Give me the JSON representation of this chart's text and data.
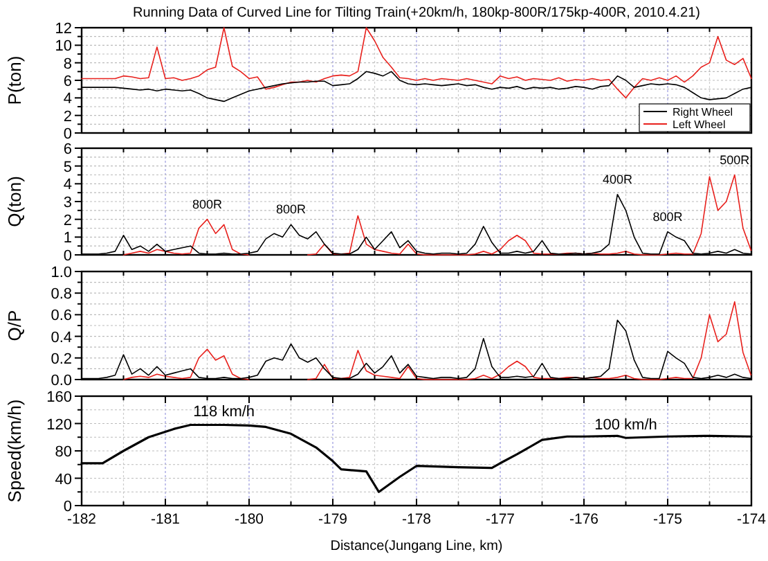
{
  "chart_data": [
    {
      "type": "line",
      "title": "Running Data of Curved Line for Tilting Train(+20km/h, 180kp-800R/175kp-400R, 2010.4.21)",
      "ylabel": "P(ton)",
      "xlim": [
        -182,
        -174
      ],
      "ylim": [
        0,
        12
      ],
      "xticks": [
        {
          "value": -182,
          "label": null
        },
        {
          "value": -181.5,
          "label": null
        },
        {
          "value": -181,
          "label": null
        },
        {
          "value": -180.5,
          "label": null
        },
        {
          "value": -180,
          "label": null
        },
        {
          "value": -179.5,
          "label": null
        },
        {
          "value": -179,
          "label": null
        },
        {
          "value": -178.5,
          "label": null
        },
        {
          "value": -178,
          "label": null
        },
        {
          "value": -177.5,
          "label": null
        },
        {
          "value": -177,
          "label": null
        },
        {
          "value": -176.5,
          "label": null
        },
        {
          "value": -176,
          "label": null
        },
        {
          "value": -175.5,
          "label": null
        },
        {
          "value": -175,
          "label": null
        },
        {
          "value": -174.5,
          "label": null
        },
        {
          "value": -174,
          "label": null
        }
      ],
      "yticks": [
        0,
        {
          "value": 1,
          "label": null
        },
        2,
        {
          "value": 3,
          "label": null
        },
        4,
        {
          "value": 5,
          "label": null
        },
        6,
        {
          "value": 7,
          "label": null
        },
        8,
        {
          "value": 9,
          "label": null
        },
        10,
        {
          "value": 11,
          "label": null
        },
        12
      ],
      "tick_labels": "y",
      "grid": true,
      "legend": "bottom right",
      "x": [
        -182,
        -181.9,
        -181.8,
        -181.7,
        -181.6,
        -181.5,
        -181.4,
        -181.3,
        -181.2,
        -181.1,
        -181,
        -180.9,
        -180.8,
        -180.7,
        -180.6,
        -180.5,
        -180.4,
        -180.3,
        -180.2,
        -180.1,
        -180,
        -179.9,
        -179.8,
        -179.7,
        -179.6,
        -179.5,
        -179.4,
        -179.3,
        -179.2,
        -179.1,
        -179,
        -178.9,
        -178.8,
        -178.7,
        -178.6,
        -178.5,
        -178.4,
        -178.3,
        -178.2,
        -178.1,
        -178,
        -177.9,
        -177.8,
        -177.7,
        -177.6,
        -177.5,
        -177.4,
        -177.3,
        -177.2,
        -177.1,
        -177,
        -176.9,
        -176.8,
        -176.7,
        -176.6,
        -176.5,
        -176.4,
        -176.3,
        -176.2,
        -176.1,
        -176,
        -175.9,
        -175.8,
        -175.7,
        -175.6,
        -175.5,
        -175.4,
        -175.3,
        -175.2,
        -175.1,
        -175,
        -174.9,
        -174.8,
        -174.7,
        -174.6,
        -174.5,
        -174.4,
        -174.3,
        -174.2,
        -174.1,
        -174
      ],
      "series": [
        {
          "name": "Right Wheel",
          "color": "#000000",
          "values": [
            5.2,
            5.2,
            5.2,
            5.2,
            5.2,
            5.1,
            5.0,
            4.9,
            5.0,
            4.8,
            5.0,
            4.9,
            4.8,
            4.9,
            4.5,
            4.0,
            3.8,
            3.6,
            4.0,
            4.4,
            4.8,
            5.0,
            5.2,
            5.4,
            5.6,
            5.7,
            5.8,
            5.8,
            5.9,
            5.9,
            5.4,
            5.5,
            5.6,
            6.2,
            7.0,
            6.8,
            6.5,
            7.0,
            6.0,
            5.6,
            5.5,
            5.6,
            5.5,
            5.4,
            5.5,
            5.6,
            5.4,
            5.5,
            5.2,
            5.0,
            5.2,
            5.1,
            5.3,
            5.0,
            5.2,
            5.1,
            5.2,
            5.0,
            5.1,
            5.3,
            5.2,
            5.0,
            5.3,
            5.4,
            6.5,
            6.0,
            5.2,
            5.4,
            5.6,
            5.5,
            5.6,
            5.5,
            5.2,
            4.6,
            4.0,
            3.8,
            3.9,
            4.0,
            4.5,
            5.0,
            5.2
          ]
        },
        {
          "name": "Left Wheel",
          "color": "#e8201c",
          "values": [
            6.2,
            6.2,
            6.2,
            6.2,
            6.2,
            6.5,
            6.4,
            6.2,
            6.3,
            9.8,
            6.2,
            6.3,
            6.0,
            6.2,
            6.5,
            7.2,
            7.5,
            12.0,
            7.6,
            7.0,
            6.2,
            6.4,
            5.0,
            5.2,
            5.5,
            5.8,
            5.8,
            6.0,
            5.8,
            6.2,
            6.5,
            6.6,
            6.5,
            7.0,
            12.0,
            10.5,
            8.6,
            7.5,
            6.3,
            6.2,
            6.0,
            6.2,
            6.0,
            6.2,
            6.1,
            6.0,
            6.2,
            6.0,
            5.8,
            5.6,
            6.5,
            6.2,
            6.4,
            6.0,
            6.2,
            6.1,
            6.0,
            6.3,
            5.9,
            6.1,
            6.0,
            6.2,
            6.0,
            6.1,
            5.0,
            4.0,
            5.2,
            6.2,
            6.0,
            6.3,
            6.0,
            6.5,
            5.8,
            6.5,
            7.5,
            8.0,
            11.0,
            8.3,
            7.8,
            8.5,
            6.2
          ]
        }
      ]
    },
    {
      "type": "line",
      "ylabel": "Q(ton)",
      "xlim": [
        -182,
        -174
      ],
      "ylim": [
        0,
        6
      ],
      "xticks": [
        {
          "value": -182,
          "label": null
        },
        {
          "value": -181.5,
          "label": null
        },
        {
          "value": -181,
          "label": null
        },
        {
          "value": -180.5,
          "label": null
        },
        {
          "value": -180,
          "label": null
        },
        {
          "value": -179.5,
          "label": null
        },
        {
          "value": -179,
          "label": null
        },
        {
          "value": -178.5,
          "label": null
        },
        {
          "value": -178,
          "label": null
        },
        {
          "value": -177.5,
          "label": null
        },
        {
          "value": -177,
          "label": null
        },
        {
          "value": -176.5,
          "label": null
        },
        {
          "value": -176,
          "label": null
        },
        {
          "value": -175.5,
          "label": null
        },
        {
          "value": -175,
          "label": null
        },
        {
          "value": -174.5,
          "label": null
        },
        {
          "value": -174,
          "label": null
        }
      ],
      "yticks": [
        0,
        {
          "value": 0.5,
          "label": null
        },
        1,
        {
          "value": 1.5,
          "label": null
        },
        2,
        {
          "value": 2.5,
          "label": null
        },
        3,
        {
          "value": 3.5,
          "label": null
        },
        4,
        {
          "value": 4.5,
          "label": null
        },
        5,
        {
          "value": 5.5,
          "label": null
        },
        6
      ],
      "tick_labels": "y",
      "grid": true,
      "annotations": [
        {
          "text": "800R",
          "x": -180.5,
          "y": 2.0
        },
        {
          "text": "800R",
          "x": -179.5,
          "y": 1.7
        },
        {
          "text": "400R",
          "x": -175.6,
          "y": 3.4
        },
        {
          "text": "800R",
          "x": -175.0,
          "y": 1.3
        },
        {
          "text": "500R",
          "x": -174.2,
          "y": 4.5
        }
      ],
      "x": [
        -182,
        -181.9,
        -181.8,
        -181.7,
        -181.6,
        -181.5,
        -181.4,
        -181.3,
        -181.2,
        -181.1,
        -181,
        -180.9,
        -180.8,
        -180.7,
        -180.6,
        -180.5,
        -180.4,
        -180.3,
        -180.2,
        -180.1,
        -180,
        -179.9,
        -179.8,
        -179.7,
        -179.6,
        -179.5,
        -179.4,
        -179.3,
        -179.2,
        -179.1,
        -179,
        -178.9,
        -178.8,
        -178.7,
        -178.6,
        -178.5,
        -178.4,
        -178.3,
        -178.2,
        -178.1,
        -178,
        -177.9,
        -177.8,
        -177.7,
        -177.6,
        -177.5,
        -177.4,
        -177.3,
        -177.2,
        -177.1,
        -177,
        -176.9,
        -176.8,
        -176.7,
        -176.6,
        -176.5,
        -176.4,
        -176.3,
        -176.2,
        -176.1,
        -176,
        -175.9,
        -175.8,
        -175.7,
        -175.6,
        -175.5,
        -175.4,
        -175.3,
        -175.2,
        -175.1,
        -175,
        -174.9,
        -174.8,
        -174.7,
        -174.6,
        -174.5,
        -174.4,
        -174.3,
        -174.2,
        -174.1,
        -174
      ],
      "series": [
        {
          "color": "#000000",
          "values": [
            0.05,
            0.05,
            0.05,
            0.1,
            0.2,
            1.1,
            0.3,
            0.5,
            0.2,
            0.6,
            0.2,
            0.3,
            0.4,
            0.5,
            0.1,
            0.05,
            0.05,
            0.1,
            0.05,
            0.05,
            0.1,
            0.2,
            0.9,
            1.2,
            1.0,
            1.7,
            1.1,
            0.9,
            1.3,
            0.6,
            0.1,
            0.05,
            0.05,
            0.3,
            1.0,
            0.3,
            0.8,
            1.3,
            0.4,
            0.8,
            0.2,
            0.1,
            0.05,
            0.1,
            0.1,
            0.05,
            0.1,
            0.6,
            1.6,
            0.7,
            0.1,
            0.1,
            0.2,
            0.1,
            0.2,
            0.8,
            0.1,
            0.05,
            0.05,
            0.1,
            0.05,
            0.1,
            0.2,
            0.6,
            3.4,
            2.5,
            1.0,
            0.1,
            0.05,
            0.05,
            1.3,
            1.0,
            0.8,
            0.1,
            0.05,
            0.1,
            0.2,
            0.1,
            0.3,
            0.1,
            0.05
          ]
        },
        {
          "color": "#e8201c",
          "values": [
            null,
            null,
            null,
            null,
            null,
            0,
            0.1,
            0.2,
            0.1,
            0.3,
            0.2,
            0.1,
            0.05,
            0.1,
            1.5,
            2.0,
            1.2,
            1.7,
            0.3,
            0.05,
            0,
            null,
            null,
            null,
            null,
            null,
            null,
            0,
            0.05,
            0.6,
            0.05,
            0.05,
            0.1,
            2.2,
            0.6,
            0.3,
            0.2,
            0.1,
            0.05,
            0.6,
            0.05,
            0,
            0,
            0,
            0,
            0,
            0,
            0.05,
            0.2,
            0.05,
            0.3,
            0.8,
            1.1,
            0.8,
            0.1,
            0.05,
            0.05,
            0.05,
            0.1,
            0.1,
            0.05,
            0.1,
            0.05,
            0.05,
            0.1,
            0.2,
            0.05,
            0,
            0,
            0,
            0.05,
            0.1,
            0.05,
            0.05,
            1.2,
            4.4,
            2.5,
            3.0,
            4.5,
            1.5,
            0.2
          ]
        }
      ]
    },
    {
      "type": "line",
      "ylabel": "Q/P",
      "xlim": [
        -182,
        -174
      ],
      "ylim": [
        0,
        1
      ],
      "xticks": [
        {
          "value": -182,
          "label": null
        },
        {
          "value": -181.5,
          "label": null
        },
        {
          "value": -181,
          "label": null
        },
        {
          "value": -180.5,
          "label": null
        },
        {
          "value": -180,
          "label": null
        },
        {
          "value": -179.5,
          "label": null
        },
        {
          "value": -179,
          "label": null
        },
        {
          "value": -178.5,
          "label": null
        },
        {
          "value": -178,
          "label": null
        },
        {
          "value": -177.5,
          "label": null
        },
        {
          "value": -177,
          "label": null
        },
        {
          "value": -176.5,
          "label": null
        },
        {
          "value": -176,
          "label": null
        },
        {
          "value": -175.5,
          "label": null
        },
        {
          "value": -175,
          "label": null
        },
        {
          "value": -174.5,
          "label": null
        },
        {
          "value": -174,
          "label": null
        }
      ],
      "yticks": [
        {
          "value": 0,
          "label": "0.0"
        },
        {
          "value": 0.1,
          "label": null
        },
        0.2,
        {
          "value": 0.3,
          "label": null
        },
        0.4,
        {
          "value": 0.5,
          "label": null
        },
        0.6,
        {
          "value": 0.7,
          "label": null
        },
        0.8,
        {
          "value": 0.9,
          "label": null
        },
        {
          "value": 1,
          "label": "1.0"
        }
      ],
      "tick_labels": "y",
      "grid": true,
      "x": [
        -182,
        -181.9,
        -181.8,
        -181.7,
        -181.6,
        -181.5,
        -181.4,
        -181.3,
        -181.2,
        -181.1,
        -181,
        -180.9,
        -180.8,
        -180.7,
        -180.6,
        -180.5,
        -180.4,
        -180.3,
        -180.2,
        -180.1,
        -180,
        -179.9,
        -179.8,
        -179.7,
        -179.6,
        -179.5,
        -179.4,
        -179.3,
        -179.2,
        -179.1,
        -179,
        -178.9,
        -178.8,
        -178.7,
        -178.6,
        -178.5,
        -178.4,
        -178.3,
        -178.2,
        -178.1,
        -178,
        -177.9,
        -177.8,
        -177.7,
        -177.6,
        -177.5,
        -177.4,
        -177.3,
        -177.2,
        -177.1,
        -177,
        -176.9,
        -176.8,
        -176.7,
        -176.6,
        -176.5,
        -176.4,
        -176.3,
        -176.2,
        -176.1,
        -176,
        -175.9,
        -175.8,
        -175.7,
        -175.6,
        -175.5,
        -175.4,
        -175.3,
        -175.2,
        -175.1,
        -175,
        -174.9,
        -174.8,
        -174.7,
        -174.6,
        -174.5,
        -174.4,
        -174.3,
        -174.2,
        -174.1,
        -174
      ],
      "series": [
        {
          "color": "#000000",
          "values": [
            0.01,
            0.01,
            0.01,
            0.02,
            0.04,
            0.23,
            0.05,
            0.1,
            0.04,
            0.12,
            0.04,
            0.06,
            0.08,
            0.1,
            0.02,
            0.01,
            0.01,
            0.02,
            0.01,
            0.01,
            0.02,
            0.04,
            0.17,
            0.2,
            0.18,
            0.33,
            0.2,
            0.16,
            0.2,
            0.1,
            0.02,
            0.01,
            0.01,
            0.05,
            0.15,
            0.06,
            0.12,
            0.22,
            0.06,
            0.14,
            0.03,
            0.02,
            0.01,
            0.02,
            0.02,
            0.01,
            0.02,
            0.1,
            0.38,
            0.12,
            0.02,
            0.02,
            0.03,
            0.02,
            0.03,
            0.15,
            0.02,
            0.01,
            0.01,
            0.02,
            0.01,
            0.02,
            0.03,
            0.1,
            0.55,
            0.45,
            0.18,
            0.02,
            0.01,
            0.01,
            0.26,
            0.2,
            0.15,
            0.02,
            0.01,
            0.02,
            0.04,
            0.02,
            0.05,
            0.02,
            0.01
          ]
        },
        {
          "color": "#e8201c",
          "values": [
            null,
            null,
            null,
            null,
            null,
            0,
            0.02,
            0.03,
            0.02,
            0.05,
            0.03,
            0.02,
            0.01,
            0.02,
            0.2,
            0.28,
            0.18,
            0.22,
            0.05,
            0.01,
            0,
            null,
            null,
            null,
            null,
            null,
            null,
            0,
            0.01,
            0.14,
            0.01,
            0.01,
            0.02,
            0.27,
            0.08,
            0.04,
            0.03,
            0.02,
            0.01,
            0.12,
            0.01,
            0,
            0,
            0,
            0,
            0,
            0,
            0.01,
            0.04,
            0.01,
            0.05,
            0.12,
            0.17,
            0.12,
            0.02,
            0.01,
            0.01,
            0.01,
            0.02,
            0.02,
            0.01,
            0.02,
            0.01,
            0.01,
            0.02,
            0.04,
            0.01,
            0,
            0,
            0,
            0.01,
            0.02,
            0.01,
            0.01,
            0.2,
            0.6,
            0.35,
            0.42,
            0.72,
            0.25,
            0.03
          ]
        }
      ]
    },
    {
      "type": "line",
      "ylabel": "Speed(km/h)",
      "xlabel": "Distance(Jungang Line, km)",
      "xlim": [
        -182,
        -174
      ],
      "ylim": [
        0,
        160
      ],
      "xticks": [
        -182,
        {
          "value": -181.5,
          "label": null
        },
        -181,
        {
          "value": -180.5,
          "label": null
        },
        -180,
        {
          "value": -179.5,
          "label": null
        },
        -179,
        {
          "value": -178.5,
          "label": null
        },
        -178,
        {
          "value": -177.5,
          "label": null
        },
        -177,
        {
          "value": -176.5,
          "label": null
        },
        -176,
        {
          "value": -175.5,
          "label": null
        },
        -175,
        {
          "value": -174.5,
          "label": null
        },
        -174
      ],
      "yticks": [
        0,
        {
          "value": 20,
          "label": null
        },
        40,
        {
          "value": 60,
          "label": null
        },
        80,
        {
          "value": 100,
          "label": null
        },
        120,
        {
          "value": 140,
          "label": null
        },
        160
      ],
      "grid": true,
      "annotations": [
        {
          "text": "118 km/h",
          "x": -180.3,
          "y": 118
        },
        {
          "text": "100 km/h",
          "x": -175.5,
          "y": 99
        }
      ],
      "x": [
        -182,
        -181.75,
        -181.5,
        -181.2,
        -180.9,
        -180.7,
        -180.3,
        -180,
        -179.8,
        -179.5,
        -179.2,
        -179,
        -178.9,
        -178.7,
        -178.6,
        -178.45,
        -178.2,
        -178,
        -177.5,
        -177.1,
        -177,
        -176.8,
        -176.5,
        -176.2,
        -176,
        -175.6,
        -175.5,
        -175,
        -174.5,
        -174
      ],
      "series": [
        {
          "color": "#000000",
          "values": [
            62,
            62,
            80,
            100,
            112,
            118,
            118,
            117,
            115,
            105,
            85,
            65,
            53,
            51,
            50,
            20,
            42,
            58,
            56,
            55,
            62,
            75,
            96,
            101,
            101,
            102,
            99,
            101,
            102,
            101
          ]
        }
      ]
    }
  ]
}
